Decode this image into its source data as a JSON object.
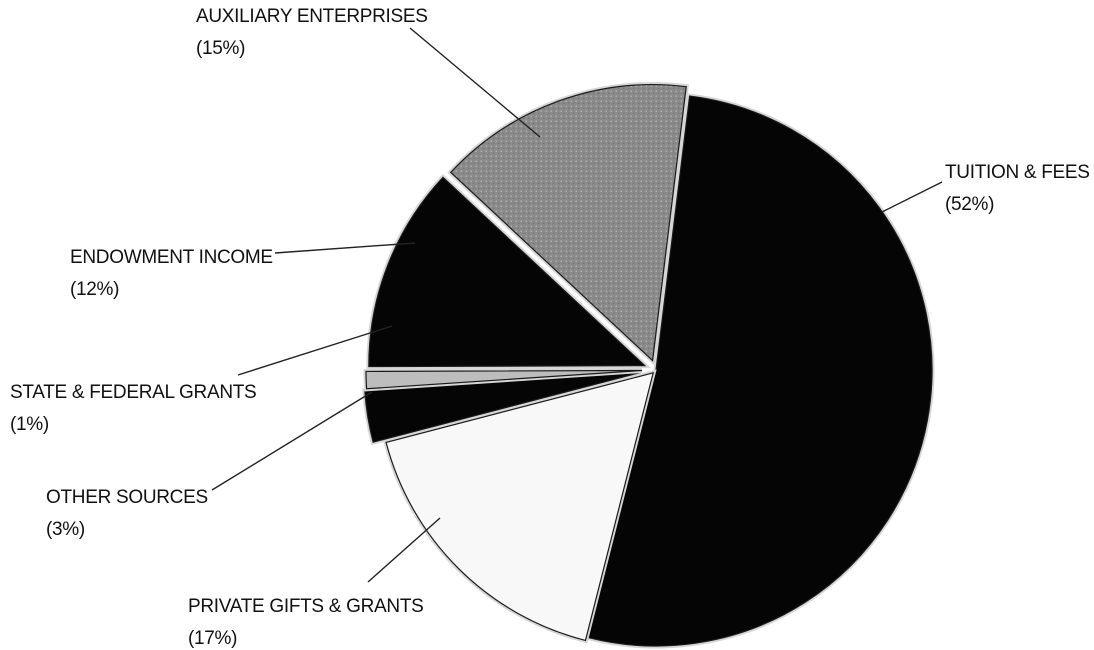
{
  "chart_data": {
    "type": "pie",
    "title": "",
    "slices": [
      {
        "label": "TUITION & FEES",
        "percent_label": "(52%)",
        "value": 52,
        "color": "#050505",
        "fill": "solid"
      },
      {
        "label": "PRIVATE GIFTS & GRANTS",
        "percent_label": "(17%)",
        "value": 17,
        "color": "#f8f8f8",
        "fill": "solid"
      },
      {
        "label": "OTHER SOURCES",
        "percent_label": "(3%)",
        "value": 3,
        "color": "#050505",
        "fill": "solid"
      },
      {
        "label": "STATE & FEDERAL GRANTS",
        "percent_label": "(1%)",
        "value": 1,
        "color": "#bdbdbd",
        "fill": "solid"
      },
      {
        "label": "ENDOWMENT INCOME",
        "percent_label": "(12%)",
        "value": 12,
        "color": "#050505",
        "fill": "solid"
      },
      {
        "label": "AUXILIARY ENTERPRISES",
        "percent_label": "(15%)",
        "value": 15,
        "color": "#8c8c8c",
        "fill": "stipple"
      }
    ]
  }
}
